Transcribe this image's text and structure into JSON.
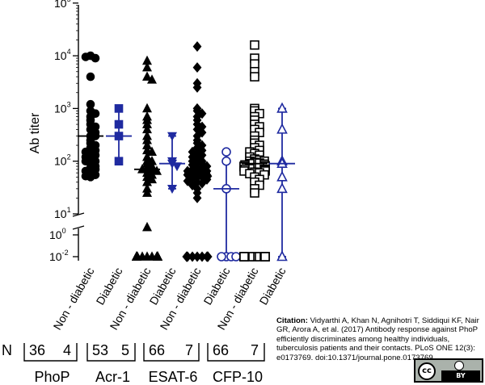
{
  "chart_data": {
    "type": "scatter",
    "title": "",
    "ylabel": "Ab titer",
    "y_scale": "log10 with broken axis",
    "y_upper_ticks": [
      "10^1",
      "10^2",
      "10^3",
      "10^4",
      "10^5"
    ],
    "y_lower_ticks": [
      "10^0",
      "10^-2"
    ],
    "categories": [
      "Non - diabetic",
      "Diabetic",
      "Non - diabetic",
      "Diabetic",
      "Non - diabetic",
      "Diabetic",
      "Non - diabetic",
      "Diabetic"
    ],
    "colors": {
      "non_diabetic": "#000000",
      "diabetic": "#1f2aa0"
    },
    "groups": [
      {
        "antigen": "PhoP",
        "n_label": "N",
        "n_values": [
          "36",
          "4"
        ]
      },
      {
        "antigen": "Acr-1",
        "n_values": [
          "53",
          "5"
        ]
      },
      {
        "antigen": "ESAT-6",
        "n_values": [
          "66",
          "7"
        ]
      },
      {
        "antigen": "CFP-10",
        "n_values": [
          "66",
          "7"
        ]
      }
    ],
    "series": [
      {
        "antigen": "PhoP",
        "group": "Non - diabetic",
        "marker": "circle-filled",
        "values": [
          10000,
          9000,
          9500,
          4000,
          1200,
          900,
          800,
          700,
          600,
          500,
          450,
          400,
          350,
          300,
          300,
          250,
          220,
          200,
          180,
          160,
          150,
          140,
          130,
          120,
          110,
          100,
          100,
          90,
          80,
          75,
          70,
          65,
          60,
          55,
          52,
          50
        ],
        "median": 300
      },
      {
        "antigen": "PhoP",
        "group": "Diabetic",
        "marker": "square-filled",
        "values": [
          1000,
          500,
          300,
          100
        ],
        "median": 300,
        "range": [
          100,
          1000
        ]
      },
      {
        "antigen": "Acr-1",
        "group": "Non - diabetic",
        "marker": "triangle-filled",
        "values": [
          8000,
          6000,
          4000,
          3500,
          1000,
          700,
          600,
          500,
          400,
          300,
          250,
          200,
          160,
          150,
          120,
          100,
          100,
          90,
          80,
          75,
          70,
          70,
          65,
          60,
          55,
          50,
          45,
          40,
          30,
          25,
          5,
          0.01,
          0.01,
          0.01,
          0.01,
          0.01,
          0.01,
          0.01,
          0.01,
          0.01,
          0.01,
          0.01,
          0.01,
          0.01,
          0.01,
          0.01,
          0.01,
          0.01,
          0.01,
          0.01,
          0.01,
          0.01,
          0.01
        ],
        "median": 70
      },
      {
        "antigen": "Acr-1",
        "group": "Diabetic",
        "marker": "triangle-down-filled",
        "values": [
          300,
          100,
          90,
          80,
          30
        ],
        "median": 90,
        "range": [
          30,
          300
        ]
      },
      {
        "antigen": "ESAT-6",
        "group": "Non - diabetic",
        "marker": "diamond-filled",
        "values": [
          15000,
          6000,
          3000,
          2500,
          1000,
          900,
          800,
          700,
          600,
          500,
          450,
          400,
          350,
          300,
          250,
          220,
          200,
          180,
          160,
          150,
          140,
          130,
          120,
          110,
          100,
          100,
          95,
          90,
          85,
          80,
          75,
          70,
          70,
          65,
          65,
          60,
          60,
          58,
          55,
          55,
          52,
          50,
          50,
          48,
          45,
          42,
          40,
          38,
          35,
          30,
          25,
          20,
          0.01,
          0.01,
          0.01,
          0.01,
          0.01,
          0.01,
          0.01,
          0.01,
          0.01,
          0.01,
          0.01,
          0.01,
          0.01,
          0.01
        ],
        "median": 60
      },
      {
        "antigen": "ESAT-6",
        "group": "Diabetic",
        "marker": "circle-open",
        "values": [
          150,
          100,
          30,
          0.01,
          0.01,
          0.01,
          0.01
        ],
        "median": 30,
        "range": [
          0.01,
          150
        ]
      },
      {
        "antigen": "CFP-10",
        "group": "Non - diabetic",
        "marker": "square-open",
        "values": [
          16000,
          9000,
          7000,
          5000,
          4000,
          1000,
          900,
          800,
          700,
          600,
          500,
          450,
          400,
          350,
          300,
          250,
          220,
          200,
          180,
          160,
          150,
          140,
          130,
          120,
          110,
          105,
          100,
          100,
          95,
          92,
          90,
          88,
          85,
          82,
          80,
          80,
          78,
          75,
          75,
          72,
          70,
          70,
          68,
          65,
          65,
          62,
          60,
          58,
          55,
          50,
          45,
          40,
          35,
          30,
          25,
          0.01,
          0.01,
          0.01,
          0.01,
          0.01,
          0.01,
          0.01,
          0.01,
          0.01,
          0.01,
          0.01
        ],
        "median": 90
      },
      {
        "antigen": "CFP-10",
        "group": "Diabetic",
        "marker": "triangle-open",
        "values": [
          1000,
          400,
          100,
          90,
          50,
          30,
          0.01
        ],
        "median": 90,
        "range": [
          0.01,
          1000
        ]
      }
    ]
  },
  "citation": {
    "label": "Citation:",
    "text": "Vidyarthi A, Khan N, Agnihotri T, Siddiqui KF, Nair GR, Arora A, et al. (2017) Antibody response against PhoP efficiently discriminates among healthy individuals, tuberculosis patients and their contacts. PLoS ONE 12(3): e0173769. doi:10.1371/journal.pone.0173769"
  },
  "license_badge": {
    "cc": "cc",
    "by": "BY",
    "icon": "creative-commons-by-icon"
  }
}
